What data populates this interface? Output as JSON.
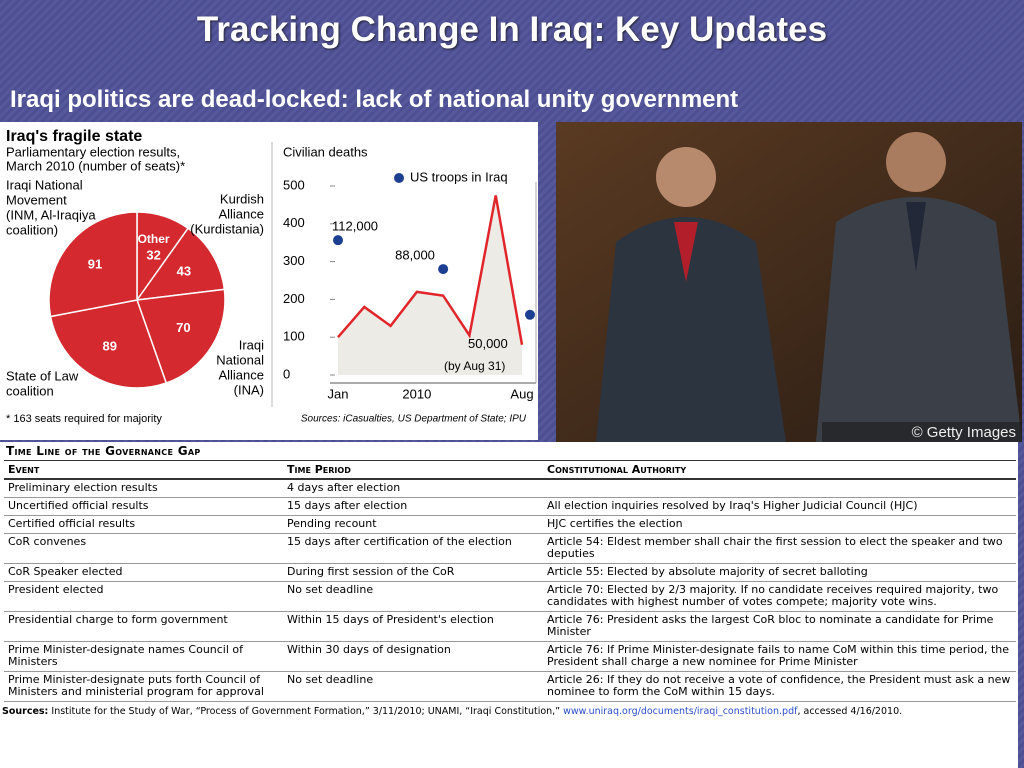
{
  "title": "Tracking Change In Iraq: Key Updates",
  "subtitle": "Iraqi politics are dead-locked: lack of national unity government",
  "pie_chart": {
    "chart_data": {
      "type": "pie",
      "title": "Iraq's fragile state",
      "subtitle": [
        "Parliamentary election results,",
        "March 2010 (number of seats)*"
      ],
      "categories": [
        [
          "Other"
        ],
        [
          "Kurdish",
          "Alliance",
          "(Kurdistania)"
        ],
        [
          "Iraqi",
          "National",
          "Alliance",
          "(INA)"
        ],
        [
          "State of Law",
          "coalition"
        ],
        [
          "Iraqi National",
          "Movement",
          "(INM, Al-Iraqiya",
          "coalition)"
        ]
      ],
      "values": [
        32,
        43,
        70,
        89,
        91
      ],
      "color": "#d42a2f",
      "footnote": "* 163 seats required for majority"
    }
  },
  "line_chart": {
    "chart_data": {
      "type": "line",
      "title": "Civilian deaths",
      "categories": [
        "Jan",
        null,
        null,
        "2010",
        null,
        null,
        null,
        "Aug"
      ],
      "ylim": [
        0,
        500
      ],
      "yticks": [
        0,
        100,
        200,
        300,
        400,
        500
      ],
      "y2lim": [
        0,
        157000
      ],
      "series": [
        {
          "name": "Civilian deaths",
          "color": "#e0262b",
          "values": [
            100,
            180,
            130,
            220,
            210,
            105,
            475,
            80
          ]
        },
        {
          "name": "US troops in Iraq",
          "color": "#1d3f91",
          "axis": "y2",
          "values": [
            112000,
            null,
            null,
            null,
            88000,
            null,
            null,
            50000
          ],
          "value_labels": [
            "112,000",
            null,
            null,
            null,
            "88,000",
            null,
            null,
            "50,000"
          ]
        }
      ],
      "annotation": "(by Aug 31)",
      "sources": "Sources: iCasualties, US Department of State; IPU"
    }
  },
  "photo": {
    "credit": "© Getty Images"
  },
  "table": {
    "title": "Time Line of the Governance Gap",
    "header": [
      "Event",
      "Time Period",
      "Constitutional Authority"
    ],
    "rows": [
      [
        "Preliminary election results",
        "4 days after election",
        ""
      ],
      [
        "Uncertified official results",
        "15 days after election",
        "All election inquiries resolved by Iraq's Higher Judicial Council (HJC)"
      ],
      [
        "Certified official results",
        "Pending recount",
        "HJC certifies the election"
      ],
      [
        "CoR convenes",
        "15 days after certification of the election",
        "Article 54: Eldest member shall chair the first session to elect the speaker and two deputies"
      ],
      [
        "CoR Speaker elected",
        "During first session of the CoR",
        "Article 55: Elected by absolute majority of secret balloting"
      ],
      [
        "President elected",
        "No set deadline",
        "Article 70: Elected by 2/3 majority. If no candidate receives required majority, two candidates with highest number of votes compete; majority vote wins."
      ],
      [
        "Presidential charge to form government",
        "Within 15 days of President's election",
        "Article 76: President asks the largest CoR bloc to nominate a candidate for Prime Minister"
      ],
      [
        "Prime Minister-designate names Council of Ministers",
        "Within 30 days of designation",
        "Article 76: If Prime Minister-designate fails to name CoM within this time period, the President shall charge a new nominee for Prime Minister"
      ],
      [
        "Prime Minister-designate puts forth Council of Ministers and ministerial program for approval",
        "No set deadline",
        "Article 26: If they do not receive a vote of confidence, the President must ask a new nominee to form the CoM within 15 days."
      ]
    ],
    "sources": {
      "label": "Sources:",
      "text": "Institute for the Study of War, “Process of Government Formation,” 3/11/2010; UNAMI, “Iraqi Constitution,”",
      "link": "www.uniraq.org/documents/iraqi_constitution.pdf",
      "after": ", accessed 4/16/2010."
    }
  }
}
